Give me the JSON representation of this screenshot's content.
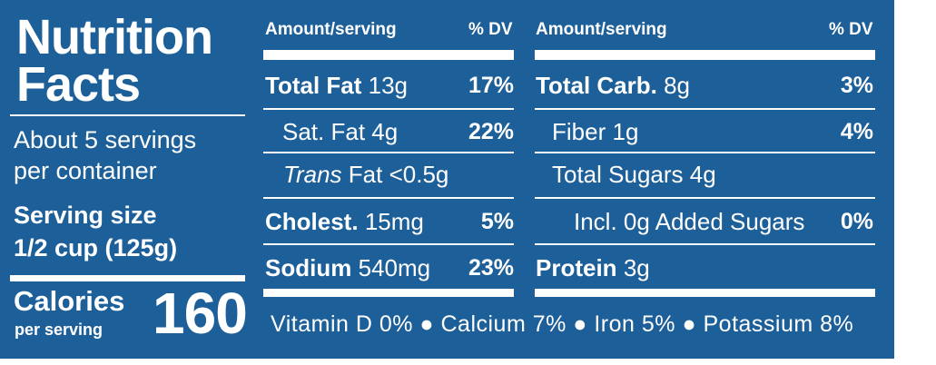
{
  "panel": {
    "title_line1": "Nutrition",
    "title_line2": "Facts",
    "servings_line1": "About 5 servings",
    "servings_line2": "per container",
    "serving_size_label": "Serving size",
    "serving_size_value": "1/2 cup (125g)",
    "calories_label": "Calories",
    "calories_sub": "per serving",
    "calories_value": "160"
  },
  "left_table": {
    "header_amount": "Amount/serving",
    "header_dv": "% DV",
    "rows": [
      {
        "name": "Total Fat",
        "amount": "13g",
        "dv": "17%"
      },
      {
        "name": "Sat. Fat",
        "amount": "4g",
        "dv": "22%"
      },
      {
        "name_italic": "Trans",
        "name": "Fat",
        "amount": "<0.5g",
        "dv": ""
      },
      {
        "name": "Cholest.",
        "amount": "15mg",
        "dv": "5%"
      },
      {
        "name": "Sodium",
        "amount": "540mg",
        "dv": "23%"
      }
    ]
  },
  "right_table": {
    "header_amount": "Amount/serving",
    "header_dv": "% DV",
    "rows": [
      {
        "name": "Total Carb.",
        "amount": "8g",
        "dv": "3%"
      },
      {
        "name": "Fiber",
        "amount": "1g",
        "dv": "4%"
      },
      {
        "name": "Total Sugars",
        "amount": "4g",
        "dv": ""
      },
      {
        "name": "Incl. 0g Added Sugars",
        "amount": "",
        "dv": "0%"
      },
      {
        "name": "Protein",
        "amount": "3g",
        "dv": ""
      }
    ]
  },
  "footer": "Vitamin D 0% ● Calcium 7% ● Iron 5% ● Potassium 8%",
  "colors": {
    "background": "#1d5f99",
    "text": "#ffffff"
  }
}
